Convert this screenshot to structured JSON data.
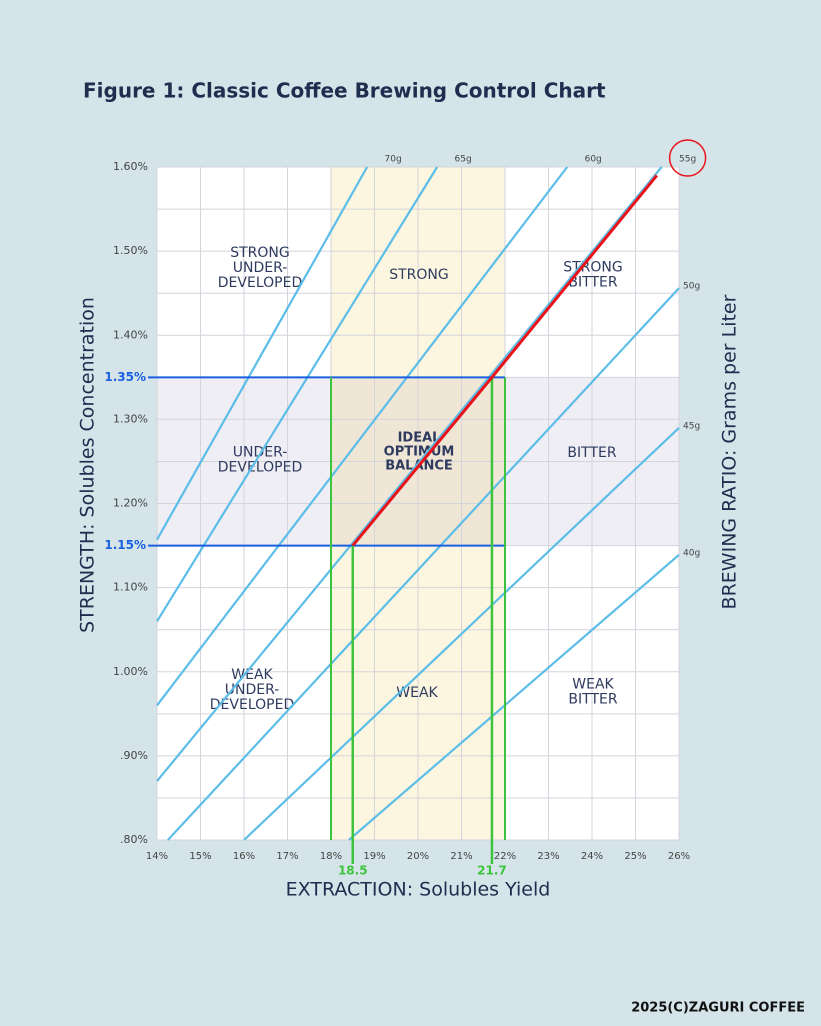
{
  "chart_data": {
    "type": "control-chart",
    "title": "Figure 1: Classic Coffee Brewing Control Chart",
    "x_label": "EXTRACTION: Solubles Yield",
    "y_label": "STRENGTH: Solubles Concentration",
    "y2_label": "BREWING RATIO: Grams per Liter",
    "xlim": [
      14,
      26
    ],
    "ylim": [
      0.8,
      1.6
    ],
    "xticks": [
      {
        "value": 14,
        "label": "14%"
      },
      {
        "value": 15,
        "label": "15%"
      },
      {
        "value": 16,
        "label": "16%"
      },
      {
        "value": 17,
        "label": "17%"
      },
      {
        "value": 18,
        "label": "18%"
      },
      {
        "value": 19,
        "label": "19%"
      },
      {
        "value": 20,
        "label": "20%"
      },
      {
        "value": 21,
        "label": "21%"
      },
      {
        "value": 22,
        "label": "22%"
      },
      {
        "value": 23,
        "label": "23%"
      },
      {
        "value": 24,
        "label": "24%"
      },
      {
        "value": 25,
        "label": "25%"
      },
      {
        "value": 26,
        "label": "26%"
      }
    ],
    "yticks": [
      {
        "value": 0.8,
        "label": ".80%"
      },
      {
        "value": 0.9,
        "label": ".90%"
      },
      {
        "value": 1.0,
        "label": "1.00%"
      },
      {
        "value": 1.1,
        "label": "1.10%"
      },
      {
        "value": 1.2,
        "label": "1.20%"
      },
      {
        "value": 1.3,
        "label": "1.30%"
      },
      {
        "value": 1.4,
        "label": "1.40%"
      },
      {
        "value": 1.5,
        "label": "1.50%"
      },
      {
        "value": 1.6,
        "label": "1.60%"
      }
    ],
    "yminor": [
      0.85,
      0.95,
      1.05,
      1.15,
      1.25,
      1.35,
      1.45,
      1.55
    ],
    "grid": true,
    "ratio_color": "#5bbde8",
    "ratio_lines": [
      {
        "name": "70g",
        "points": [
          [
            14,
            1.157
          ],
          [
            18.83,
            1.6
          ]
        ]
      },
      {
        "name": "65g",
        "points": [
          [
            14,
            1.06
          ],
          [
            20.44,
            1.6
          ]
        ]
      },
      {
        "name": "60g",
        "points": [
          [
            14,
            0.96
          ],
          [
            23.43,
            1.6
          ]
        ]
      },
      {
        "name": "55g",
        "points": [
          [
            14,
            0.87
          ],
          [
            25.6,
            1.6
          ]
        ]
      },
      {
        "name": "50g",
        "points": [
          [
            14.25,
            0.8
          ],
          [
            26,
            1.456
          ]
        ]
      },
      {
        "name": "45g",
        "points": [
          [
            16,
            0.8
          ],
          [
            26,
            1.29
          ]
        ]
      },
      {
        "name": "40g",
        "points": [
          [
            18.41,
            0.8
          ],
          [
            26,
            1.139
          ]
        ]
      }
    ],
    "ideal": {
      "label": [
        "IDEAL",
        "OPTIMUM",
        "BALANCE"
      ],
      "extraction": [
        18,
        22
      ],
      "strength": [
        1.15,
        1.35
      ]
    },
    "zones": [
      [
        "STRONG",
        "UNDER-",
        "DEVELOPED"
      ],
      [
        "STRONG"
      ],
      [
        "STRONG",
        "BITTER"
      ],
      [
        "UNDER-",
        "DEVELOPED"
      ],
      [
        "BITTER"
      ],
      [
        "WEAK",
        "UNDER-",
        "DEVELOPED"
      ],
      [
        "WEAK"
      ],
      [
        "WEAK",
        "BITTER"
      ]
    ],
    "highlight": {
      "ratio": "55g",
      "color": "#e8141a",
      "points": [
        [
          18.5,
          1.15
        ],
        [
          21.7,
          1.35
        ],
        [
          25.49,
          1.59
        ]
      ]
    },
    "reference_y": [
      {
        "value": 1.35,
        "label": "1.35%"
      },
      {
        "value": 1.15,
        "label": "1.15%"
      }
    ],
    "reference_x": [
      {
        "value": 18.5,
        "label": "18.5"
      },
      {
        "value": 21.7,
        "label": "21.7"
      }
    ],
    "footer": "2025(C)ZAGURI COFFEE"
  }
}
